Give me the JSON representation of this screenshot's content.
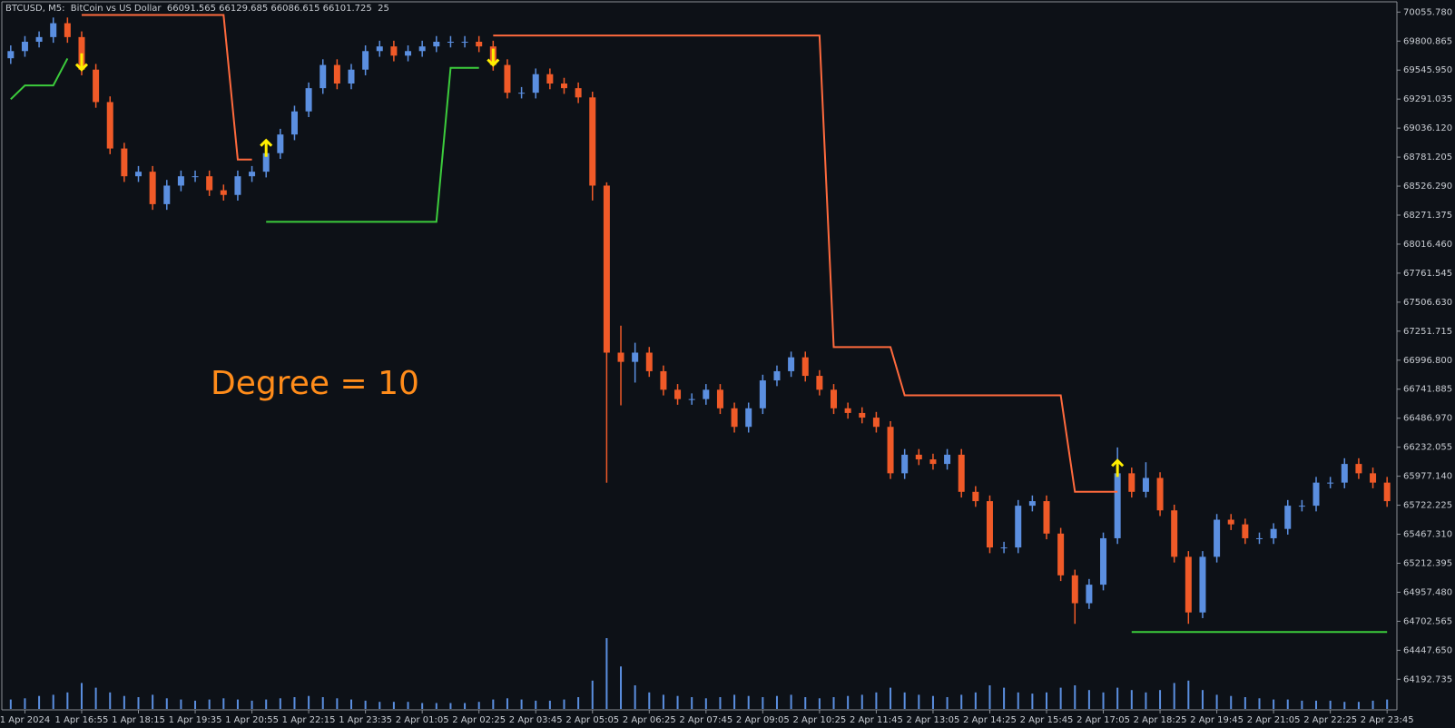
{
  "chart_data": {
    "type": "candlestick",
    "header": "BTCUSD, M5:  BitCoin vs US Dollar  66091.565 66129.685 66086.615 66101.725  25",
    "annotation": "Degree = 10",
    "annotation_color": "#ff8c1a",
    "up_color": "#5b8fe0",
    "down_color": "#f05a28",
    "volume_color": "#5b8fe0",
    "signal_color": "#ffee00",
    "categories": [
      null,
      "1 Apr 2024",
      null,
      null,
      null,
      "1 Apr 16:55",
      null,
      null,
      null,
      "1 Apr 18:15",
      null,
      null,
      null,
      "1 Apr 19:35",
      null,
      null,
      null,
      "1 Apr 20:55",
      null,
      null,
      null,
      "1 Apr 22:15",
      null,
      null,
      null,
      "1 Apr 23:35",
      null,
      null,
      null,
      "2 Apr 01:05",
      null,
      null,
      null,
      "2 Apr 02:25",
      null,
      null,
      null,
      "2 Apr 03:45",
      null,
      null,
      null,
      "2 Apr 05:05",
      null,
      null,
      null,
      "2 Apr 06:25",
      null,
      null,
      null,
      "2 Apr 07:45",
      null,
      null,
      null,
      "2 Apr 09:05",
      null,
      null,
      null,
      "2 Apr 10:25",
      null,
      null,
      null,
      "2 Apr 11:45",
      null,
      null,
      null,
      "2 Apr 13:05",
      null,
      null,
      null,
      "2 Apr 14:25",
      null,
      null,
      null,
      "2 Apr 15:45",
      null,
      null,
      null,
      "2 Apr 17:05",
      null,
      null,
      null,
      "2 Apr 18:25",
      null,
      null,
      null,
      "2 Apr 19:45",
      null,
      null,
      null,
      "2 Apr 21:05",
      null,
      null,
      null,
      "2 Apr 22:25",
      null,
      null,
      null,
      "2 Apr 23:45"
    ],
    "open": [
      69650,
      69713,
      69795,
      69836,
      69958,
      69836,
      69550,
      69265,
      68857,
      68613,
      68653,
      68368,
      68531,
      68613,
      68613,
      68490,
      68449,
      68613,
      68653,
      68816,
      68980,
      69183,
      69387,
      69591,
      69428,
      69550,
      69713,
      69754,
      69673,
      69713,
      69754,
      69795,
      69795,
      69795,
      69754,
      69591,
      69347,
      69347,
      69510,
      69428,
      69387,
      69306,
      68531,
      67063,
      66982,
      67063,
      66900,
      66737,
      66655,
      66655,
      66737,
      66574,
      66411,
      66574,
      66819,
      66900,
      67022,
      66859,
      66737,
      66574,
      66533,
      66492,
      66411,
      66003,
      66166,
      66125,
      66085,
      66166,
      65840,
      65758,
      65351,
      65351,
      65718,
      65758,
      65473,
      65106,
      64861,
      65024,
      65432,
      66003,
      65840,
      65962,
      65677,
      65269,
      64780,
      65269,
      65595,
      65554,
      65432,
      65432,
      65514,
      65718,
      65718,
      65921,
      65921,
      66085,
      66003,
      65921
    ],
    "high": [
      69763,
      69845,
      69886,
      70008,
      70008,
      69886,
      69600,
      69315,
      68907,
      68703,
      68703,
      68581,
      68663,
      68663,
      68663,
      68540,
      68663,
      68703,
      68866,
      69030,
      69233,
      69437,
      69641,
      69641,
      69600,
      69763,
      69804,
      69804,
      69763,
      69804,
      69845,
      69845,
      69845,
      69845,
      69804,
      69641,
      69397,
      69560,
      69560,
      69478,
      69437,
      69356,
      68560,
      67300,
      67150,
      67113,
      66950,
      66787,
      66705,
      66787,
      66787,
      66624,
      66624,
      66869,
      66950,
      67072,
      67072,
      66909,
      66787,
      66624,
      66583,
      66542,
      66461,
      66216,
      66216,
      66175,
      66216,
      66216,
      65890,
      65808,
      65401,
      65768,
      65808,
      65808,
      65523,
      65156,
      65074,
      65482,
      66230,
      66053,
      66100,
      66012,
      65727,
      65319,
      65319,
      65645,
      65645,
      65604,
      65482,
      65564,
      65768,
      65768,
      65971,
      65971,
      66135,
      66135,
      66053,
      65971
    ],
    "low": [
      69600,
      69663,
      69745,
      69786,
      69786,
      69500,
      69215,
      68807,
      68563,
      68563,
      68318,
      68318,
      68481,
      68563,
      68440,
      68399,
      68399,
      68563,
      68603,
      68766,
      68930,
      69133,
      69337,
      69378,
      69378,
      69500,
      69663,
      69623,
      69623,
      69663,
      69704,
      69745,
      69745,
      69704,
      69541,
      69297,
      69297,
      69297,
      69378,
      69337,
      69256,
      68400,
      65920,
      66600,
      66800,
      66850,
      66687,
      66605,
      66605,
      66605,
      66524,
      66361,
      66361,
      66524,
      66769,
      66850,
      66809,
      66687,
      66524,
      66483,
      66442,
      66361,
      65953,
      65953,
      66075,
      66035,
      66035,
      65790,
      65708,
      65301,
      65301,
      65301,
      65668,
      65423,
      65056,
      64680,
      64811,
      64974,
      65382,
      65790,
      65790,
      65627,
      65219,
      64680,
      64730,
      65219,
      65504,
      65382,
      65382,
      65382,
      65464,
      65668,
      65668,
      65871,
      65871,
      65953,
      65871,
      65708
    ],
    "close": [
      69713,
      69795,
      69836,
      69958,
      69836,
      69550,
      69265,
      68857,
      68613,
      68653,
      68368,
      68531,
      68613,
      68613,
      68490,
      68449,
      68613,
      68653,
      68816,
      68980,
      69183,
      69387,
      69591,
      69428,
      69550,
      69713,
      69754,
      69673,
      69713,
      69754,
      69795,
      69795,
      69795,
      69754,
      69591,
      69347,
      69347,
      69510,
      69428,
      69387,
      69306,
      68531,
      67063,
      66982,
      67063,
      66900,
      66737,
      66655,
      66655,
      66737,
      66574,
      66411,
      66574,
      66819,
      66900,
      67022,
      66859,
      66737,
      66574,
      66533,
      66492,
      66411,
      66003,
      66166,
      66125,
      66085,
      66166,
      65840,
      65758,
      65351,
      65351,
      65718,
      65758,
      65473,
      65106,
      64861,
      65024,
      65432,
      66003,
      65840,
      65962,
      65677,
      65269,
      64780,
      65269,
      65595,
      65554,
      65432,
      65432,
      65514,
      65718,
      65718,
      65921,
      65921,
      66085,
      66003,
      65921,
      65758
    ],
    "volume": [
      40,
      45,
      55,
      60,
      70,
      110,
      90,
      70,
      55,
      50,
      60,
      45,
      40,
      35,
      40,
      45,
      40,
      35,
      40,
      45,
      50,
      55,
      50,
      45,
      40,
      35,
      30,
      30,
      30,
      25,
      25,
      25,
      25,
      30,
      40,
      45,
      40,
      35,
      35,
      40,
      50,
      120,
      300,
      180,
      100,
      70,
      60,
      55,
      50,
      45,
      50,
      60,
      55,
      50,
      55,
      60,
      50,
      45,
      50,
      55,
      60,
      70,
      90,
      70,
      60,
      55,
      50,
      60,
      70,
      100,
      90,
      70,
      65,
      70,
      90,
      100,
      80,
      70,
      90,
      80,
      70,
      80,
      110,
      120,
      80,
      60,
      55,
      50,
      45,
      40,
      40,
      35,
      35,
      35,
      30,
      30,
      35,
      40
    ],
    "bands": [
      {
        "color": "#ff6a3d",
        "values": [
          null,
          null,
          null,
          null,
          null,
          70030,
          70030,
          70030,
          70030,
          70030,
          70030,
          70030,
          70030,
          70030,
          70030,
          70030,
          68760,
          68760,
          null,
          null,
          null,
          null,
          null,
          null,
          null,
          null,
          null,
          null,
          null,
          null,
          null,
          null,
          null,
          null,
          69850,
          69850,
          69850,
          69850,
          69850,
          69850,
          69850,
          69850,
          69850,
          69850,
          69850,
          69850,
          69850,
          69850,
          69850,
          69850,
          69850,
          69850,
          69850,
          69850,
          69850,
          69850,
          69850,
          69850,
          67112,
          67112,
          67112,
          67112,
          67112,
          66688,
          66688,
          66688,
          66688,
          66688,
          66688,
          66688,
          66688,
          66688,
          66688,
          66688,
          66688,
          65840,
          65840,
          65840,
          65840,
          null,
          null,
          null,
          null,
          null,
          null,
          null,
          null,
          null,
          null,
          null,
          null,
          null,
          null,
          null,
          null,
          null,
          null,
          null
        ]
      },
      {
        "color": "#3ccc3c",
        "values": [
          69290,
          69411,
          69411,
          69411,
          69648,
          null,
          null,
          null,
          null,
          null,
          null,
          null,
          null,
          null,
          null,
          null,
          null,
          null,
          68213,
          68213,
          68213,
          68213,
          68213,
          68213,
          68213,
          68213,
          68213,
          68213,
          68213,
          68213,
          68213,
          69566,
          69566,
          69566,
          null,
          null,
          null,
          null,
          null,
          null,
          null,
          null,
          null,
          null,
          null,
          null,
          null,
          null,
          null,
          null,
          null,
          null,
          null,
          null,
          null,
          null,
          null,
          null,
          null,
          null,
          null,
          null,
          null,
          null,
          null,
          null,
          null,
          null,
          null,
          null,
          null,
          null,
          null,
          null,
          null,
          null,
          null,
          null,
          null,
          64608,
          64608,
          64608,
          64608,
          64608,
          64608,
          64608,
          64608,
          64608,
          64608,
          64608,
          64608,
          64608,
          64608,
          64608,
          64608,
          64608,
          64608,
          64608
        ]
      }
    ],
    "signals": [
      null,
      null,
      null,
      null,
      null,
      "down",
      null,
      null,
      null,
      null,
      null,
      null,
      null,
      null,
      null,
      null,
      null,
      null,
      "up",
      null,
      null,
      null,
      null,
      null,
      null,
      null,
      null,
      null,
      null,
      null,
      null,
      null,
      null,
      null,
      "down",
      null,
      null,
      null,
      null,
      null,
      null,
      null,
      null,
      null,
      null,
      null,
      null,
      null,
      null,
      null,
      null,
      null,
      null,
      null,
      null,
      null,
      null,
      null,
      null,
      null,
      null,
      null,
      null,
      null,
      null,
      null,
      null,
      null,
      null,
      null,
      null,
      null,
      null,
      null,
      null,
      null,
      null,
      null,
      "up",
      null,
      null,
      null,
      null,
      null,
      null,
      null,
      null,
      null,
      null,
      null,
      null,
      null,
      null,
      null,
      null,
      null,
      null,
      null
    ],
    "ylim": [
      63940,
      70130
    ],
    "yticks": [
      {
        "value": 70055.78,
        "label": "70055.780"
      },
      {
        "value": 69800.865,
        "label": "69800.865"
      },
      {
        "value": 69545.95,
        "label": "69545.950"
      },
      {
        "value": 69291.035,
        "label": "69291.035"
      },
      {
        "value": 69036.12,
        "label": "69036.120"
      },
      {
        "value": 68781.205,
        "label": "68781.205"
      },
      {
        "value": 68526.29,
        "label": "68526.290"
      },
      {
        "value": 68271.375,
        "label": "68271.375"
      },
      {
        "value": 68016.46,
        "label": "68016.460"
      },
      {
        "value": 67761.545,
        "label": "67761.545"
      },
      {
        "value": 67506.63,
        "label": "67506.630"
      },
      {
        "value": 67251.715,
        "label": "67251.715"
      },
      {
        "value": 66996.8,
        "label": "66996.800"
      },
      {
        "value": 66741.885,
        "label": "66741.885"
      },
      {
        "value": 66486.97,
        "label": "66486.970"
      },
      {
        "value": 66232.055,
        "label": "66232.055"
      },
      {
        "value": 65977.14,
        "label": "65977.140"
      },
      {
        "value": 65722.225,
        "label": "65722.225"
      },
      {
        "value": 65467.31,
        "label": "65467.310"
      },
      {
        "value": 65212.395,
        "label": "65212.395"
      },
      {
        "value": 64957.48,
        "label": "64957.480"
      },
      {
        "value": 64702.565,
        "label": "64702.565"
      },
      {
        "value": 64447.65,
        "label": "64447.650"
      },
      {
        "value": 64192.735,
        "label": "64192.735"
      }
    ]
  }
}
